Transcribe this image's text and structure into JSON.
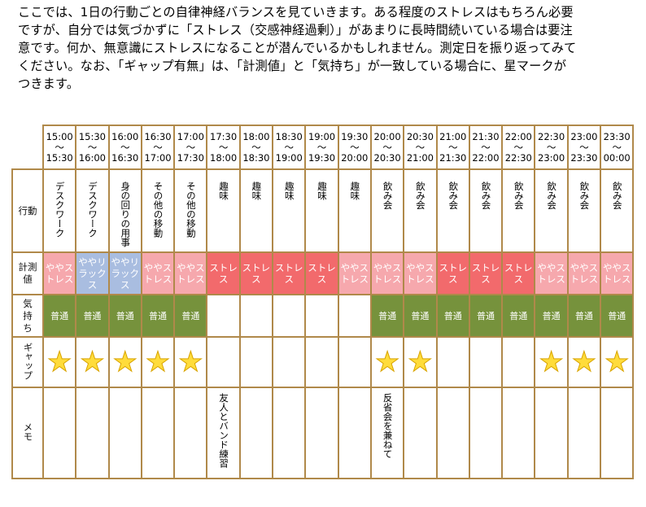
{
  "intro_lines": [
    "ここでは、1日の行動ごとの自律神経バランスを見ていきます。ある程度のストレスはもちろん必要",
    "ですが、自分では気づかずに「ストレス（交感神経過剰）」があまりに長時間続いている場合は要注",
    "意です。何か、無意識にストレスになることが潜んでいるかもしれません。測定日を振り返ってみて",
    "ください。なお、「ギャップ有無」は、「計測値」と「気持ち」が一致している場合に、星マークが",
    "つきます。"
  ],
  "row_headers": {
    "activity": "行動",
    "measurement": "計測値",
    "feeling": "気持ち",
    "gap": "ギャップ",
    "memo": "メモ"
  },
  "colors": {
    "stress": "#f26a6c",
    "slight_stress": "#f6a8ad",
    "slight_relax": "#a9bde0",
    "normal": "#76923c",
    "border": "#b0894a",
    "star": "#ffdc3b"
  },
  "slots": [
    {
      "start": "15:00",
      "sep": "〜",
      "end": "15:30",
      "activity": "デスクワーク",
      "measurement": "ややストレス",
      "m": "mid",
      "feeling": "普通",
      "gap": true,
      "memo": ""
    },
    {
      "start": "15:30",
      "sep": "〜",
      "end": "16:00",
      "activity": "デスクワーク",
      "measurement": "ややリラックス",
      "m": "low",
      "feeling": "普通",
      "gap": true,
      "memo": ""
    },
    {
      "start": "16:00",
      "sep": "〜",
      "end": "16:30",
      "activity": "身の回りの用事",
      "measurement": "ややリラックス",
      "m": "low",
      "feeling": "普通",
      "gap": true,
      "memo": ""
    },
    {
      "start": "16:30",
      "sep": "〜",
      "end": "17:00",
      "activity": "その他の移動",
      "measurement": "ややストレス",
      "m": "mid",
      "feeling": "普通",
      "gap": true,
      "memo": ""
    },
    {
      "start": "17:00",
      "sep": "〜",
      "end": "17:30",
      "activity": "その他の移動",
      "measurement": "ややストレス",
      "m": "mid",
      "feeling": "普通",
      "gap": true,
      "memo": ""
    },
    {
      "start": "17:30",
      "sep": "〜",
      "end": "18:00",
      "activity": "趣味",
      "measurement": "ストレス",
      "m": "high",
      "feeling": "",
      "gap": false,
      "memo": "友人とバンド練習"
    },
    {
      "start": "18:00",
      "sep": "〜",
      "end": "18:30",
      "activity": "趣味",
      "measurement": "ストレス",
      "m": "high",
      "feeling": "",
      "gap": false,
      "memo": ""
    },
    {
      "start": "18:30",
      "sep": "〜",
      "end": "19:00",
      "activity": "趣味",
      "measurement": "ストレス",
      "m": "high",
      "feeling": "",
      "gap": false,
      "memo": ""
    },
    {
      "start": "19:00",
      "sep": "〜",
      "end": "19:30",
      "activity": "趣味",
      "measurement": "ストレス",
      "m": "high",
      "feeling": "",
      "gap": false,
      "memo": ""
    },
    {
      "start": "19:30",
      "sep": "〜",
      "end": "20:00",
      "activity": "趣味",
      "measurement": "ややストレス",
      "m": "mid",
      "feeling": "",
      "gap": false,
      "memo": ""
    },
    {
      "start": "20:00",
      "sep": "〜",
      "end": "20:30",
      "activity": "飲み会",
      "measurement": "ややストレス",
      "m": "mid",
      "feeling": "普通",
      "gap": true,
      "memo": "反省会を兼ねて"
    },
    {
      "start": "20:30",
      "sep": "〜",
      "end": "21:00",
      "activity": "飲み会",
      "measurement": "ややストレス",
      "m": "mid",
      "feeling": "普通",
      "gap": true,
      "memo": ""
    },
    {
      "start": "21:00",
      "sep": "〜",
      "end": "21:30",
      "activity": "飲み会",
      "measurement": "ストレス",
      "m": "high",
      "feeling": "普通",
      "gap": false,
      "memo": ""
    },
    {
      "start": "21:30",
      "sep": "〜",
      "end": "22:00",
      "activity": "飲み会",
      "measurement": "ストレス",
      "m": "high",
      "feeling": "普通",
      "gap": false,
      "memo": ""
    },
    {
      "start": "22:00",
      "sep": "〜",
      "end": "22:30",
      "activity": "飲み会",
      "measurement": "ストレス",
      "m": "high",
      "feeling": "普通",
      "gap": false,
      "memo": ""
    },
    {
      "start": "22:30",
      "sep": "〜",
      "end": "23:00",
      "activity": "飲み会",
      "measurement": "ややストレス",
      "m": "mid",
      "feeling": "普通",
      "gap": true,
      "memo": ""
    },
    {
      "start": "23:00",
      "sep": "〜",
      "end": "23:30",
      "activity": "飲み会",
      "measurement": "ややストレス",
      "m": "mid",
      "feeling": "普通",
      "gap": true,
      "memo": ""
    },
    {
      "start": "23:30",
      "sep": "〜",
      "end": "00:00",
      "activity": "飲み会",
      "measurement": "ややストレス",
      "m": "mid",
      "feeling": "普通",
      "gap": true,
      "memo": ""
    }
  ]
}
